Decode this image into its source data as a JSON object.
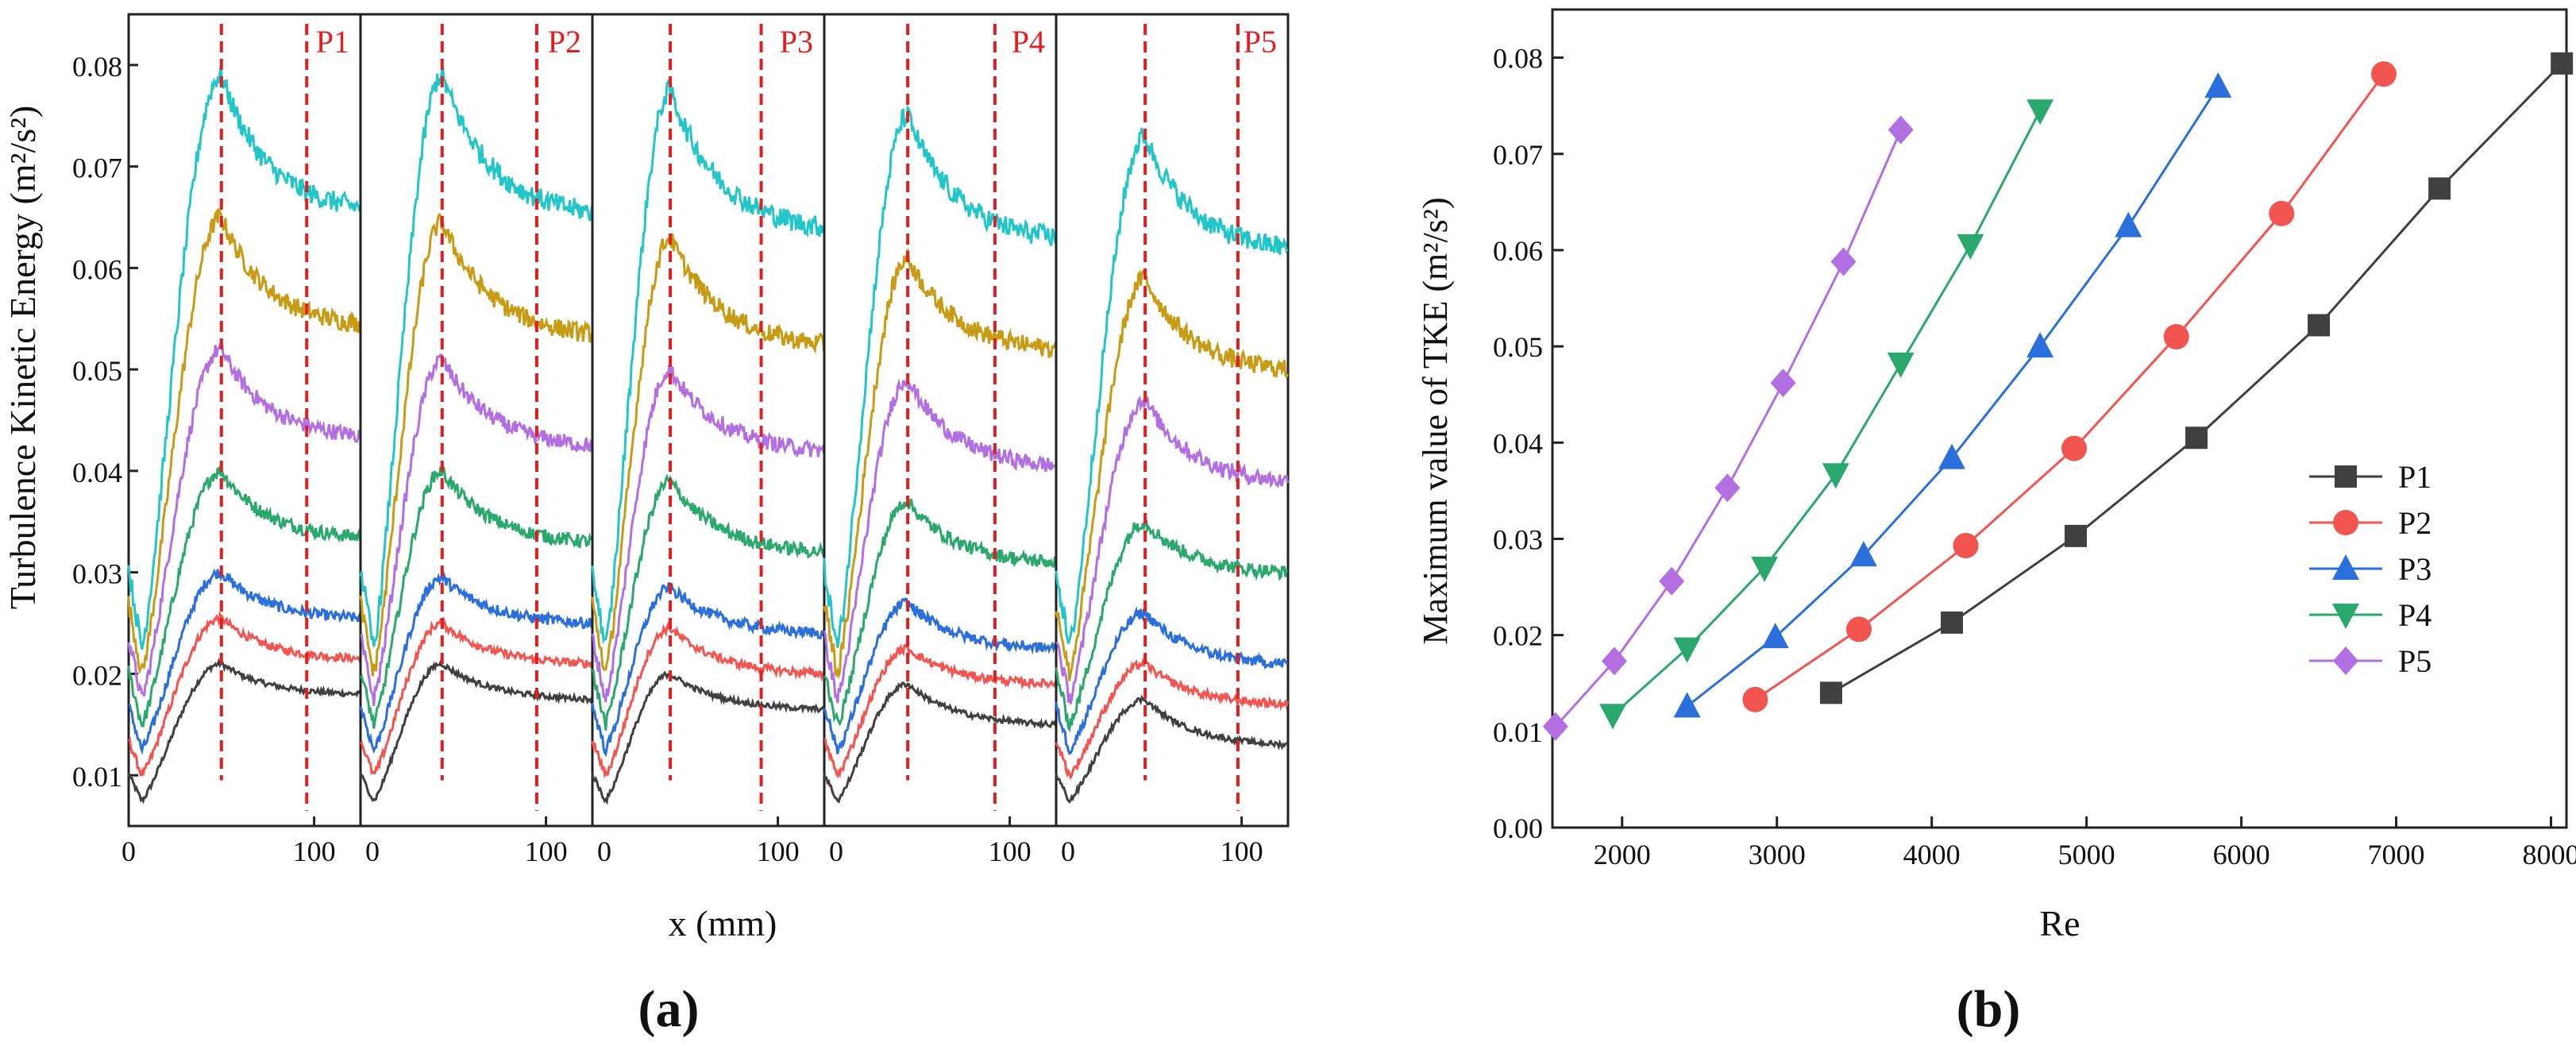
{
  "figure": {
    "caption_a": "(a)",
    "caption_b": "(b)"
  },
  "colors": {
    "black": "#404040",
    "red": "#f2544f",
    "blue": "#2a6fdb",
    "green": "#2aa86e",
    "purple": "#b26fe2",
    "gold": "#c89b14",
    "cyan": "#22c6c8",
    "marker_line": "#e02020"
  },
  "chart_data": [
    {
      "id": "a",
      "type": "line",
      "title": "",
      "ylabel": "Turbulence Kinetic Energy (m²/s²)",
      "xlabel": "x (mm)",
      "ylim": [
        0.005,
        0.085
      ],
      "yticks": [
        0.01,
        0.02,
        0.03,
        0.04,
        0.05,
        0.06,
        0.07,
        0.08
      ],
      "ytick_labels": [
        "0.01",
        "0.02",
        "0.03",
        "0.04",
        "0.05",
        "0.06",
        "0.07",
        "0.08"
      ],
      "xlim": [
        0,
        125
      ],
      "xticks": [
        0,
        100
      ],
      "xtick_labels": [
        "0",
        "100"
      ],
      "marker_lines_x": [
        50,
        96
      ],
      "series_names": [
        "black",
        "red",
        "blue",
        "green",
        "purple",
        "gold",
        "cyan"
      ],
      "subplots": [
        {
          "name": "P1",
          "peak_x": 50,
          "dashed_x": [
            50,
            96
          ],
          "peaks": [
            0.021,
            0.0255,
            0.03,
            0.04,
            0.052,
            0.065,
            0.079
          ],
          "ends": [
            0.018,
            0.0215,
            0.0255,
            0.0335,
            0.0435,
            0.0545,
            0.066
          ]
        },
        {
          "name": "P2",
          "peak_x": 44,
          "dashed_x": [
            44,
            95
          ],
          "peaks": [
            0.021,
            0.025,
            0.0295,
            0.04,
            0.051,
            0.0645,
            0.079
          ],
          "ends": [
            0.0175,
            0.021,
            0.025,
            0.033,
            0.0425,
            0.0535,
            0.0655
          ]
        },
        {
          "name": "P3",
          "peak_x": 42,
          "dashed_x": [
            42,
            91
          ],
          "peaks": [
            0.02,
            0.0245,
            0.0285,
            0.039,
            0.05,
            0.063,
            0.0775
          ],
          "ends": [
            0.0165,
            0.02,
            0.024,
            0.032,
            0.042,
            0.0525,
            0.064
          ]
        },
        {
          "name": "P4",
          "peak_x": 45,
          "dashed_x": [
            45,
            92
          ],
          "peaks": [
            0.019,
            0.0225,
            0.027,
            0.037,
            0.049,
            0.061,
            0.075
          ],
          "ends": [
            0.015,
            0.019,
            0.0225,
            0.031,
            0.0405,
            0.052,
            0.063
          ]
        },
        {
          "name": "P5",
          "peak_x": 48,
          "dashed_x": [
            48,
            98
          ],
          "peaks": [
            0.0175,
            0.021,
            0.026,
            0.035,
            0.047,
            0.059,
            0.073
          ],
          "ends": [
            0.013,
            0.017,
            0.021,
            0.03,
            0.039,
            0.05,
            0.062
          ]
        }
      ]
    },
    {
      "id": "b",
      "type": "line",
      "title": "",
      "xlabel": "Re",
      "ylabel": "Maximum value of TKE (m²/s²)",
      "xlim": [
        1550,
        8100
      ],
      "ylim": [
        0.0,
        0.085
      ],
      "xticks": [
        2000,
        3000,
        4000,
        5000,
        6000,
        7000,
        8000
      ],
      "xtick_labels": [
        "2000",
        "3000",
        "4000",
        "5000",
        "6000",
        "7000",
        "8000"
      ],
      "yticks": [
        0.0,
        0.01,
        0.02,
        0.03,
        0.04,
        0.05,
        0.06,
        0.07,
        0.08
      ],
      "ytick_labels": [
        "0.00",
        "0.01",
        "0.02",
        "0.03",
        "0.04",
        "0.05",
        "0.06",
        "0.07",
        "0.08"
      ],
      "legend_position": "center-right",
      "series": [
        {
          "name": "P1",
          "marker": "square",
          "color": "#404040",
          "x": [
            3350,
            4130,
            4930,
            5710,
            6500,
            7280,
            8070
          ],
          "y": [
            0.014,
            0.0213,
            0.0303,
            0.0405,
            0.0522,
            0.0664,
            0.0794
          ]
        },
        {
          "name": "P2",
          "marker": "circle",
          "color": "#f2544f",
          "x": [
            2860,
            3530,
            4220,
            4920,
            5580,
            6260,
            6920
          ],
          "y": [
            0.0133,
            0.0206,
            0.0293,
            0.0394,
            0.051,
            0.0638,
            0.0783
          ]
        },
        {
          "name": "P3",
          "marker": "triangle-up",
          "color": "#2a6fdb",
          "x": [
            2420,
            2990,
            3560,
            4130,
            4700,
            5270,
            5850
          ],
          "y": [
            0.0126,
            0.0198,
            0.0283,
            0.0384,
            0.05,
            0.0625,
            0.077
          ]
        },
        {
          "name": "P4",
          "marker": "triangle-down",
          "color": "#2aa86e",
          "x": [
            1940,
            2420,
            2920,
            3380,
            3800,
            4250,
            4700
          ],
          "y": [
            0.0117,
            0.0186,
            0.027,
            0.0367,
            0.0482,
            0.0605,
            0.0745
          ]
        },
        {
          "name": "P5",
          "marker": "diamond",
          "color": "#b26fe2",
          "x": [
            1570,
            1950,
            2320,
            2680,
            3040,
            3430,
            3800
          ],
          "y": [
            0.0105,
            0.0173,
            0.0256,
            0.0353,
            0.0462,
            0.0588,
            0.0725
          ]
        }
      ]
    }
  ]
}
